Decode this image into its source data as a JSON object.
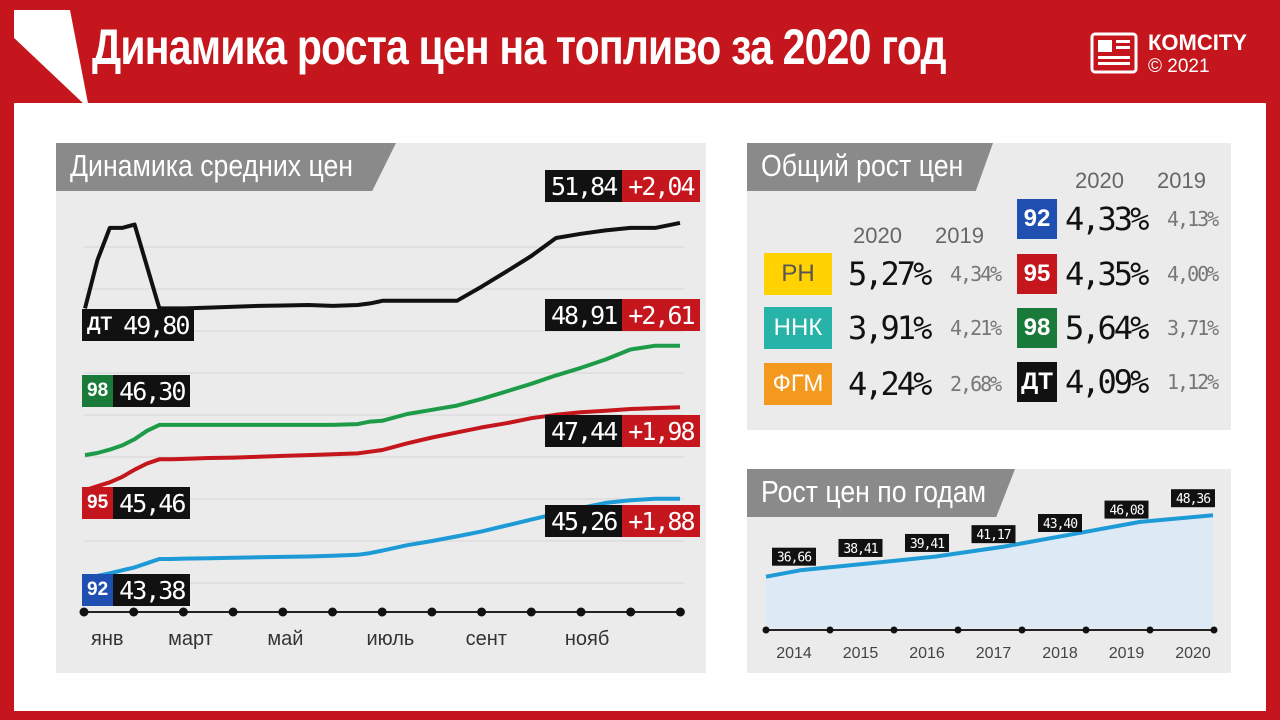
{
  "header": {
    "title": "Динамика роста цен на топливо за 2020 год",
    "brand": "КОМCITY",
    "copyright": "© 2021"
  },
  "colors": {
    "dt": "#111111",
    "f98": "#1e9b48",
    "f95": "#c4161c",
    "f92": "#1e9bd7",
    "f92_badge": "#1f4fb0",
    "f98_badge": "#1a7a3a",
    "rn": "#ffd200",
    "nnk": "#28b3a8",
    "fgm": "#f39a1e"
  },
  "main_panel": {
    "title": "Динамика средних цен",
    "labels": [
      {
        "fuel": "ДТ",
        "start": "49,80",
        "end": "51,84",
        "change": "+2,04"
      },
      {
        "fuel": "98",
        "start": "46,30",
        "end": "48,91",
        "change": "+2,61"
      },
      {
        "fuel": "95",
        "start": "45,46",
        "end": "47,44",
        "change": "+1,98"
      },
      {
        "fuel": "92",
        "start": "43,38",
        "end": "45,26",
        "change": "+1,88"
      }
    ],
    "months": [
      "янв",
      "март",
      "май",
      "июль",
      "сент",
      "нояб"
    ]
  },
  "overview_panel": {
    "title": "Общий рост цен",
    "year_new": "2020",
    "year_old": "2019",
    "companies": [
      {
        "name": "РН",
        "v2020": "5,27%",
        "v2019": "4,34%"
      },
      {
        "name": "ННК",
        "v2020": "3,91%",
        "v2019": "4,21%"
      },
      {
        "name": "ФГМ",
        "v2020": "4,24%",
        "v2019": "2,68%"
      }
    ],
    "fuels": [
      {
        "name": "92",
        "v2020": "4,33%",
        "v2019": "4,13%"
      },
      {
        "name": "95",
        "v2020": "4,35%",
        "v2019": "4,00%"
      },
      {
        "name": "98",
        "v2020": "5,64%",
        "v2019": "3,71%"
      },
      {
        "name": "ДТ",
        "v2020": "4,09%",
        "v2019": "1,12%"
      }
    ]
  },
  "years_panel": {
    "title": "Рост цен по годам"
  },
  "chart_data": [
    {
      "type": "line",
      "title": "Динамика средних цен",
      "x": [
        0,
        0.25,
        0.5,
        0.75,
        1,
        1.25,
        1.5,
        1.75,
        2,
        2.5,
        3,
        3.5,
        4,
        4.5,
        5,
        5.5,
        5.75,
        6,
        6.5,
        7,
        7.5,
        8,
        8.5,
        9,
        9.5,
        10,
        10.5,
        11,
        11.5,
        12
      ],
      "x_ticks": [
        0,
        2,
        4,
        6,
        8,
        10
      ],
      "x_tick_labels": [
        "янв",
        "март",
        "май",
        "июль",
        "сент",
        "нояб"
      ],
      "xlim": [
        0,
        12
      ],
      "ylim": [
        43.2,
        52.1
      ],
      "series": [
        {
          "name": "ДТ",
          "values": [
            49.8,
            50.95,
            51.72,
            51.72,
            51.8,
            50.8,
            49.8,
            49.8,
            49.8,
            49.82,
            49.84,
            49.86,
            49.87,
            49.88,
            49.86,
            49.88,
            49.92,
            49.98,
            49.98,
            49.98,
            49.98,
            50.32,
            50.68,
            51.05,
            51.48,
            51.58,
            51.66,
            51.72,
            51.72,
            51.84
          ]
        },
        {
          "name": "98",
          "values": [
            46.3,
            46.35,
            46.43,
            46.53,
            46.68,
            46.88,
            47.02,
            47.02,
            47.02,
            47.02,
            47.02,
            47.02,
            47.02,
            47.02,
            47.02,
            47.04,
            47.1,
            47.12,
            47.28,
            47.38,
            47.48,
            47.64,
            47.82,
            48.0,
            48.2,
            48.38,
            48.58,
            48.82,
            48.91,
            48.91
          ]
        },
        {
          "name": "95",
          "values": [
            45.46,
            45.56,
            45.65,
            45.78,
            45.95,
            46.1,
            46.2,
            46.2,
            46.21,
            46.23,
            46.24,
            46.26,
            46.28,
            46.3,
            46.32,
            46.34,
            46.38,
            46.42,
            46.58,
            46.72,
            46.84,
            46.96,
            47.06,
            47.18,
            47.26,
            47.32,
            47.36,
            47.4,
            47.42,
            47.44
          ]
        },
        {
          "name": "92",
          "values": [
            43.38,
            43.42,
            43.48,
            43.55,
            43.62,
            43.72,
            43.82,
            43.82,
            43.83,
            43.84,
            43.85,
            43.86,
            43.87,
            43.88,
            43.9,
            43.92,
            43.96,
            44.02,
            44.15,
            44.25,
            44.36,
            44.48,
            44.62,
            44.76,
            44.9,
            45.04,
            45.16,
            45.22,
            45.26,
            45.26
          ]
        }
      ]
    },
    {
      "type": "area",
      "title": "Рост цен по годам",
      "categories": [
        "2014",
        "2015",
        "2016",
        "2017",
        "2018",
        "2019",
        "2020"
      ],
      "values": [
        36.66,
        38.41,
        39.41,
        41.17,
        43.4,
        46.08,
        48.36
      ],
      "labels": [
        "36,66",
        "38,41",
        "39,41",
        "41,17",
        "43,40",
        "46,08",
        "48,36"
      ],
      "ylim": [
        26,
        50
      ]
    }
  ]
}
